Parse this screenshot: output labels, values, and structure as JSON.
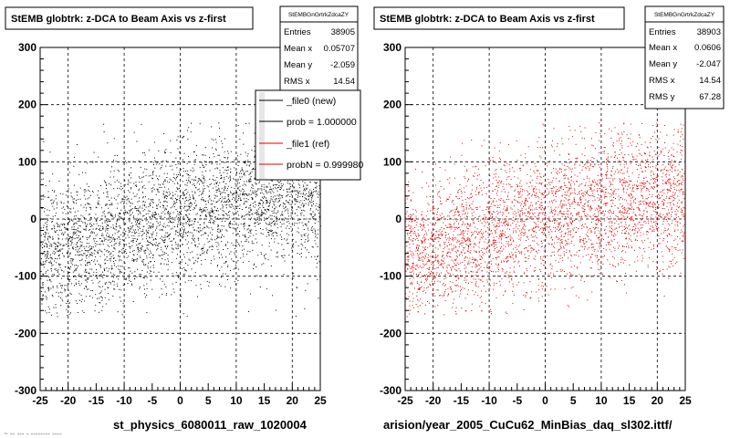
{
  "chart_data": [
    {
      "type": "scatter",
      "title": "StEMB globtrk: z-DCA to Beam Axis vs z-first",
      "xlabel": "st_physics_6080011_raw_1020004",
      "ylabel": "",
      "xlim": [
        -25,
        25
      ],
      "ylim": [
        -300,
        300
      ],
      "x_ticks": [
        -25,
        -20,
        -15,
        -10,
        -5,
        0,
        5,
        10,
        15,
        20,
        25
      ],
      "y_ticks": [
        -300,
        -200,
        -100,
        0,
        100,
        200,
        300
      ],
      "grid": true,
      "marker_color": "#000000",
      "stats": {
        "header": "StEMBGnGrtrkZdcaZY",
        "rows": [
          {
            "label": "Entries",
            "value": "38905"
          },
          {
            "label": "Mean x",
            "value": "0.05707"
          },
          {
            "label": "Mean y",
            "value": "-2.059"
          },
          {
            "label": "RMS x",
            "value": "14.54"
          }
        ]
      },
      "legend": {
        "placement": "top-right",
        "entries": [
          {
            "label": "_file0 (new)",
            "color": "#000000"
          },
          {
            "label": "prob = 1.000000",
            "color": "#000000"
          },
          {
            "label": "_file1 (ref)",
            "color": "#e00000"
          },
          {
            "label": "probN = 0.999980",
            "color": "#e00000"
          }
        ]
      },
      "series": [
        {
          "color": "#000000",
          "density_profile": [
            {
              "x": -22.5,
              "y_center": -55,
              "y_spread": 58
            },
            {
              "x": -17.5,
              "y_center": -45,
              "y_spread": 60
            },
            {
              "x": -12.5,
              "y_center": -30,
              "y_spread": 62
            },
            {
              "x": -7.5,
              "y_center": -15,
              "y_spread": 62
            },
            {
              "x": -2.5,
              "y_center": 5,
              "y_spread": 62
            },
            {
              "x": 2.5,
              "y_center": 15,
              "y_spread": 62
            },
            {
              "x": 7.5,
              "y_center": 20,
              "y_spread": 60
            },
            {
              "x": 12.5,
              "y_center": 28,
              "y_spread": 60
            },
            {
              "x": 17.5,
              "y_center": 38,
              "y_spread": 60
            },
            {
              "x": 22.5,
              "y_center": 45,
              "y_spread": 62
            }
          ]
        }
      ]
    },
    {
      "type": "scatter",
      "title": "StEMB globtrk: z-DCA to Beam Axis vs z-first",
      "xlabel": "arision/year_2005_CuCu62_MinBias_daq_sl302.ittf/",
      "ylabel": "",
      "xlim": [
        -25,
        25
      ],
      "ylim": [
        -300,
        300
      ],
      "x_ticks": [
        -25,
        -20,
        -15,
        -10,
        -5,
        0,
        5,
        10,
        15,
        20,
        25
      ],
      "y_ticks": [
        -300,
        -200,
        -100,
        0,
        100,
        200,
        300
      ],
      "grid": true,
      "marker_color": "#e00000",
      "stats": {
        "header": "StEMBGnGrtrkZdcaZY",
        "rows": [
          {
            "label": "Entries",
            "value": "38903"
          },
          {
            "label": "Mean x",
            "value": "0.0606"
          },
          {
            "label": "Mean y",
            "value": "-2.047"
          },
          {
            "label": "RMS x",
            "value": "14.54"
          },
          {
            "label": "RMS y",
            "value": "67.28"
          }
        ]
      },
      "series": [
        {
          "color": "#e00000",
          "density_profile": [
            {
              "x": -22.5,
              "y_center": -55,
              "y_spread": 58
            },
            {
              "x": -17.5,
              "y_center": -45,
              "y_spread": 60
            },
            {
              "x": -12.5,
              "y_center": -30,
              "y_spread": 62
            },
            {
              "x": -7.5,
              "y_center": -15,
              "y_spread": 62
            },
            {
              "x": -2.5,
              "y_center": 5,
              "y_spread": 62
            },
            {
              "x": 2.5,
              "y_center": 15,
              "y_spread": 62
            },
            {
              "x": 7.5,
              "y_center": 20,
              "y_spread": 60
            },
            {
              "x": 12.5,
              "y_center": 28,
              "y_spread": 60
            },
            {
              "x": 17.5,
              "y_center": 38,
              "y_spread": 60
            },
            {
              "x": 22.5,
              "y_center": 45,
              "y_spread": 62
            }
          ]
        }
      ]
    }
  ],
  "footer_text": "~ -- --- - -------- ----"
}
